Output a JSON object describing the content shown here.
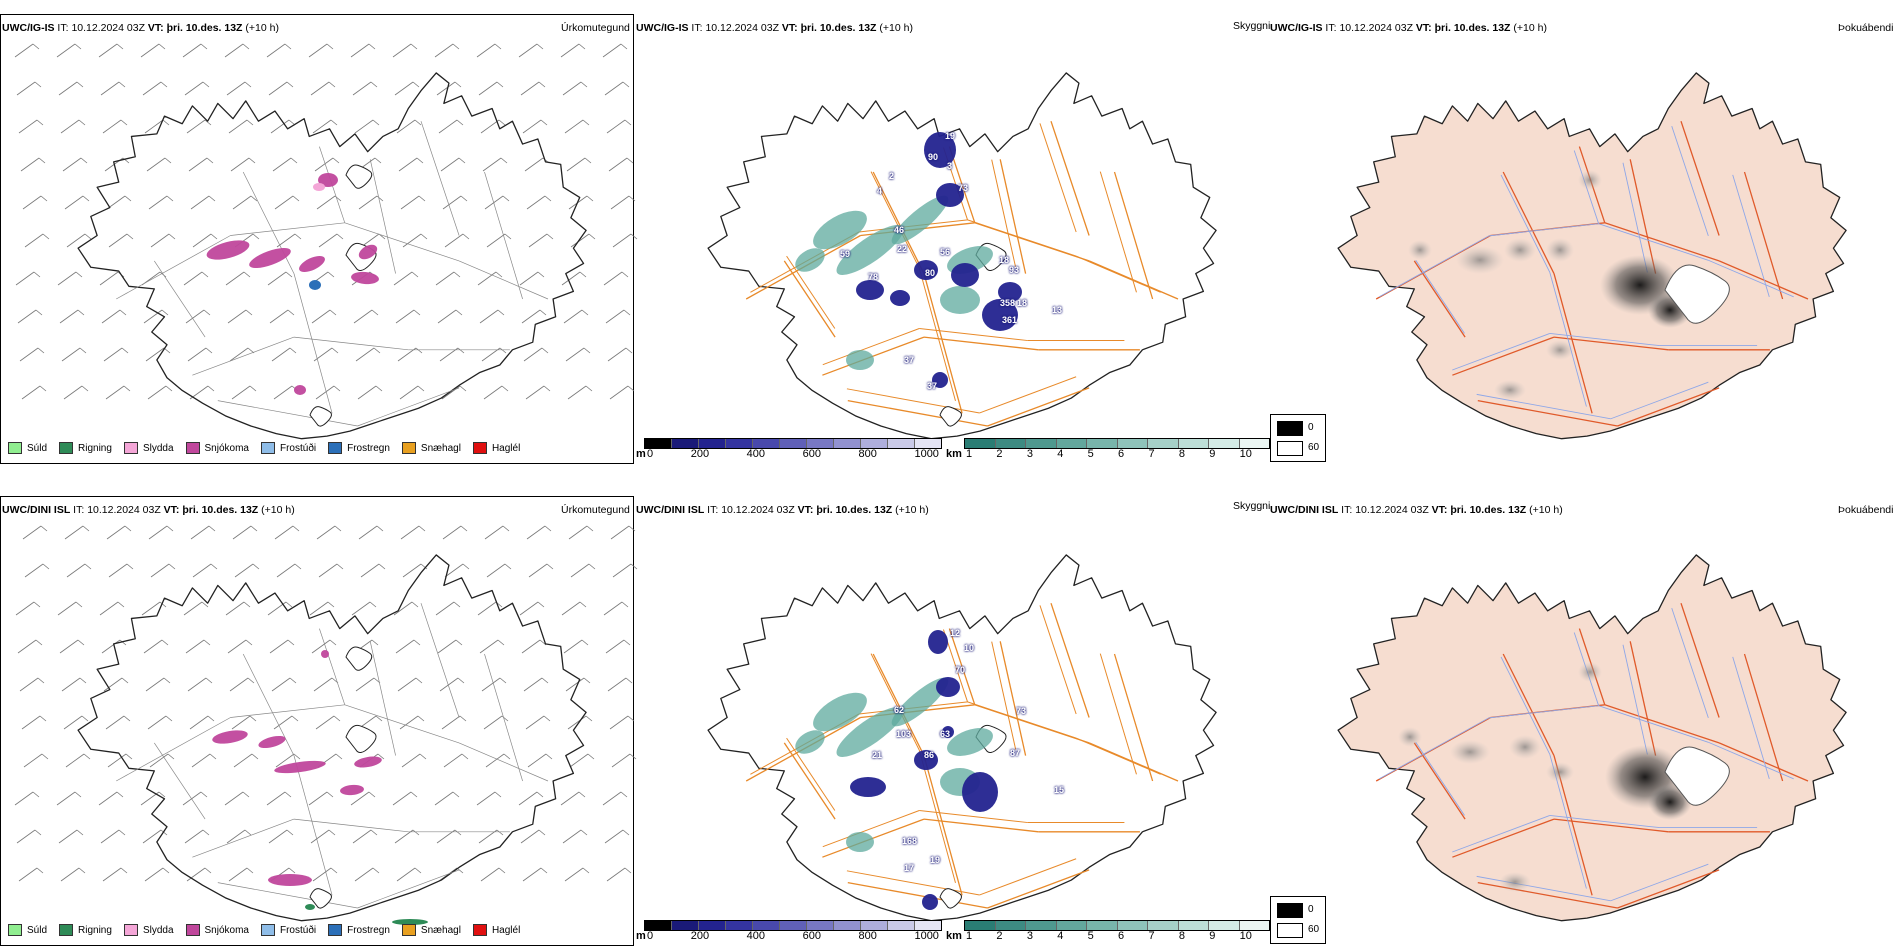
{
  "rows": [
    {
      "model": "UWC/IG-IS",
      "it_label": "IT:",
      "it_value": "10.12.2024 03Z",
      "vt_label": "VT:",
      "vt_value": "þri. 10.des. 13Z",
      "lead": "(+10 h)",
      "precip_title": "Úrkomutegund",
      "vis_title": "Skyggni",
      "fog_title": "Þokuábendi",
      "height_labels": [
        "19",
        "90",
        "3",
        "73",
        "2",
        "4",
        "46",
        "59",
        "22",
        "56",
        "18",
        "93",
        "78",
        "80",
        "358",
        "18",
        "361",
        "13",
        "37",
        "37"
      ]
    },
    {
      "model": "UWC/DINI ISL",
      "it_label": "IT:",
      "it_value": "10.12.2024 03Z",
      "vt_label": "VT:",
      "vt_value": "þri. 10.des. 13Z",
      "lead": "(+10 h)",
      "precip_title": "Úrkomutegund",
      "vis_title": "Skyggni",
      "fog_title": "Þokuábendi",
      "height_labels": [
        "12",
        "10",
        "70",
        "62",
        "73",
        "103",
        "63",
        "21",
        "86",
        "87",
        "15",
        "168",
        "17",
        "19"
      ]
    }
  ],
  "precip_legend": [
    {
      "label": "Súld",
      "color": "#90ee90"
    },
    {
      "label": "Rigning",
      "color": "#2e8b57"
    },
    {
      "label": "Slydda",
      "color": "#f4a6d7"
    },
    {
      "label": "Snjókoma",
      "color": "#c0479c"
    },
    {
      "label": "Frostúði",
      "color": "#8fbde8"
    },
    {
      "label": "Frostregn",
      "color": "#2b6fb8"
    },
    {
      "label": "Snæhagl",
      "color": "#e8a020"
    },
    {
      "label": "Haglél",
      "color": "#e01010"
    }
  ],
  "cloudbase_scale": {
    "unit": "m",
    "ticks": [
      "0",
      "200",
      "400",
      "600",
      "800",
      "1000"
    ],
    "colors": [
      "#000000",
      "#1a1a78",
      "#23238f",
      "#3434a0",
      "#4949ac",
      "#6060b8",
      "#7878c4",
      "#9292d0",
      "#aeaedc",
      "#cacae8",
      "#e4e4f4"
    ]
  },
  "visibility_scale": {
    "unit": "km",
    "ticks": [
      "1",
      "2",
      "3",
      "4",
      "5",
      "6",
      "7",
      "8",
      "9",
      "10"
    ],
    "colors": [
      "#2a7d74",
      "#3d8b82",
      "#4f998f",
      "#63a79d",
      "#78b5ab",
      "#8fc3ba",
      "#a6d0c8",
      "#bdded7",
      "#d4ebe6",
      "#ebf6f3"
    ]
  },
  "fog_key": {
    "low": "0",
    "high": "60"
  }
}
